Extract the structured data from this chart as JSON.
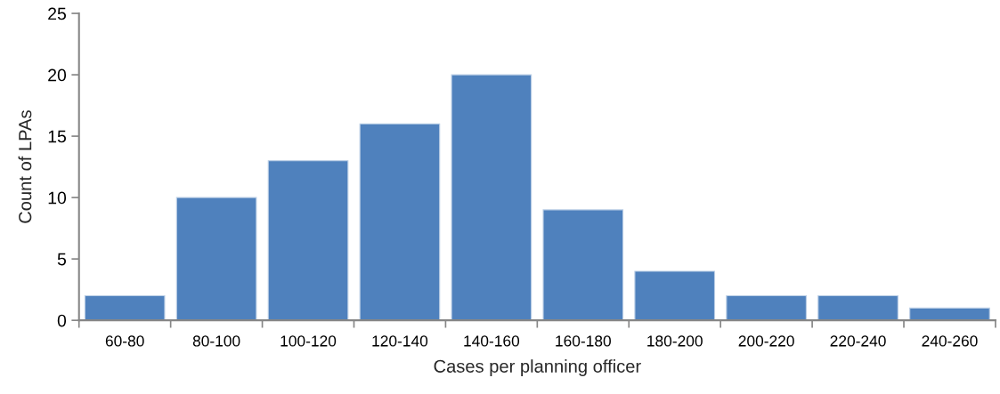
{
  "chart_data": {
    "type": "bar",
    "xlabel": "Cases per planning officer",
    "ylabel": "Count of LPAs",
    "categories": [
      "60-80",
      "80-100",
      "100-120",
      "120-140",
      "140-160",
      "160-180",
      "180-200",
      "200-220",
      "220-240",
      "240-260"
    ],
    "values": [
      2,
      10,
      13,
      16,
      20,
      9,
      4,
      2,
      2,
      1
    ],
    "color": "#4f81bd",
    "ylim": [
      0,
      25
    ],
    "yticks": [
      0,
      5,
      10,
      15,
      20,
      25
    ]
  }
}
